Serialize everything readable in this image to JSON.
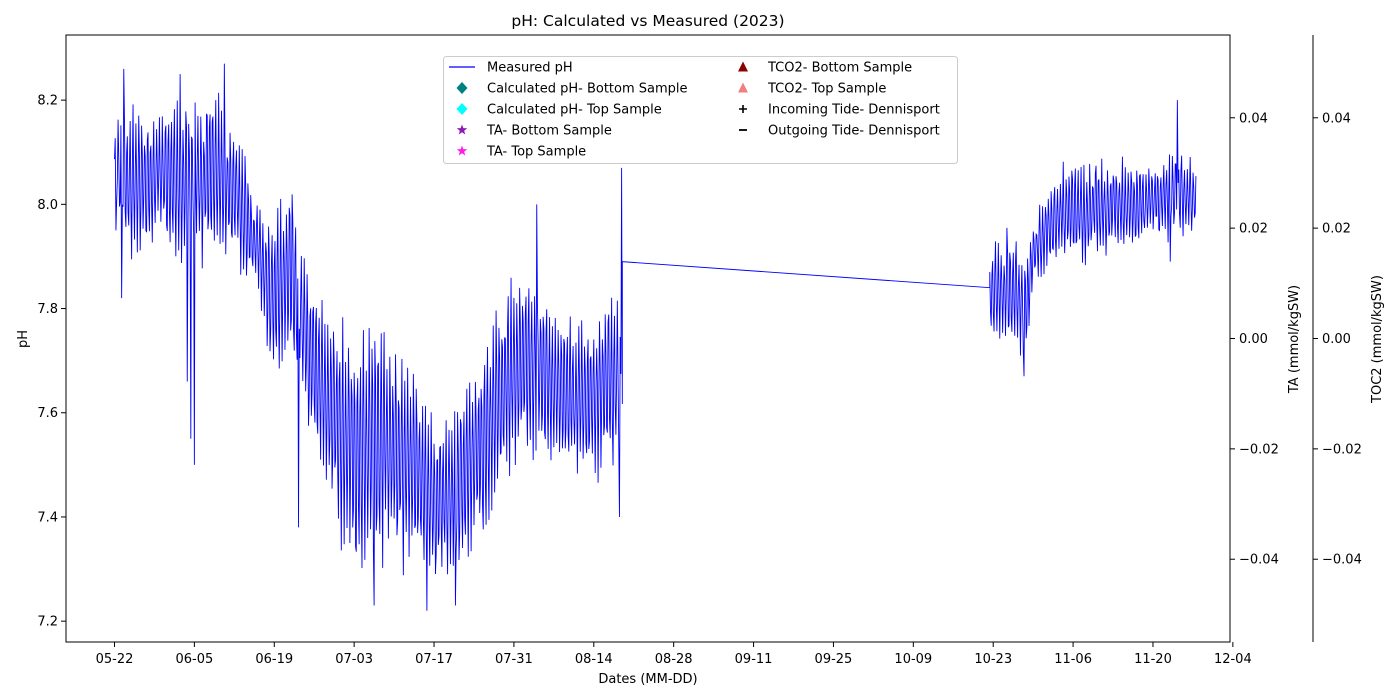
{
  "chart_data": {
    "type": "line",
    "title": "pH: Calculated vs Measured (2023)",
    "xlabel": "Dates (MM-DD)",
    "ylabel": "pH",
    "y2label": "TA (mmol/kgSW)",
    "y3label": "TOC2 (mmol/kgSW)",
    "xlim_days": [
      -8.5,
      195.5
    ],
    "ylim": [
      7.16,
      8.325
    ],
    "y2lim": [
      -0.055,
      0.055
    ],
    "x_ticks": [
      {
        "day": 0,
        "label": "05-22"
      },
      {
        "day": 14,
        "label": "06-05"
      },
      {
        "day": 28,
        "label": "06-19"
      },
      {
        "day": 42,
        "label": "07-03"
      },
      {
        "day": 56,
        "label": "07-17"
      },
      {
        "day": 70,
        "label": "07-31"
      },
      {
        "day": 84,
        "label": "08-14"
      },
      {
        "day": 98,
        "label": "08-28"
      },
      {
        "day": 112,
        "label": "09-11"
      },
      {
        "day": 126,
        "label": "09-25"
      },
      {
        "day": 140,
        "label": "10-09"
      },
      {
        "day": 154,
        "label": "10-23"
      },
      {
        "day": 168,
        "label": "11-06"
      },
      {
        "day": 182,
        "label": "11-20"
      },
      {
        "day": 196,
        "label": "12-04"
      }
    ],
    "y_ticks": [
      {
        "value": 7.2,
        "label": "7.2"
      },
      {
        "value": 7.4,
        "label": "7.4"
      },
      {
        "value": 7.6,
        "label": "7.6"
      },
      {
        "value": 7.8,
        "label": "7.8"
      },
      {
        "value": 8.0,
        "label": "8.0"
      },
      {
        "value": 8.2,
        "label": "8.2"
      }
    ],
    "y2_ticks": [
      {
        "value": 0.04,
        "label": "0.04"
      },
      {
        "value": 0.02,
        "label": "0.02"
      },
      {
        "value": 0.0,
        "label": "0.00"
      },
      {
        "value": -0.02,
        "label": "−0.02"
      },
      {
        "value": -0.04,
        "label": "−0.04"
      }
    ],
    "series": [
      {
        "name": "Measured pH",
        "color": "#0000ff",
        "style": "line",
        "envelope": [
          {
            "day": 0,
            "center": 8.07,
            "amp": 0.1
          },
          {
            "day": 3,
            "center": 8.05,
            "amp": 0.15
          },
          {
            "day": 8,
            "center": 8.05,
            "amp": 0.14
          },
          {
            "day": 12,
            "center": 8.04,
            "amp": 0.16
          },
          {
            "day": 17,
            "center": 8.06,
            "amp": 0.17
          },
          {
            "day": 21,
            "center": 8.03,
            "amp": 0.13
          },
          {
            "day": 25,
            "center": 7.92,
            "amp": 0.1
          },
          {
            "day": 28,
            "center": 7.82,
            "amp": 0.16
          },
          {
            "day": 31,
            "center": 7.88,
            "amp": 0.2
          },
          {
            "day": 34,
            "center": 7.72,
            "amp": 0.15
          },
          {
            "day": 38,
            "center": 7.6,
            "amp": 0.2
          },
          {
            "day": 42,
            "center": 7.52,
            "amp": 0.26
          },
          {
            "day": 47,
            "center": 7.55,
            "amp": 0.25
          },
          {
            "day": 52,
            "center": 7.5,
            "amp": 0.22
          },
          {
            "day": 56,
            "center": 7.42,
            "amp": 0.16
          },
          {
            "day": 61,
            "center": 7.47,
            "amp": 0.18
          },
          {
            "day": 65,
            "center": 7.55,
            "amp": 0.2
          },
          {
            "day": 69,
            "center": 7.67,
            "amp": 0.19
          },
          {
            "day": 72,
            "center": 7.7,
            "amp": 0.2
          },
          {
            "day": 77,
            "center": 7.65,
            "amp": 0.16
          },
          {
            "day": 82,
            "center": 7.62,
            "amp": 0.15
          },
          {
            "day": 88,
            "center": 7.66,
            "amp": 0.17
          }
        ],
        "spikes": [
          {
            "day": 0.2,
            "value": 7.95
          },
          {
            "day": 1.3,
            "value": 7.82
          },
          {
            "day": 1.6,
            "value": 8.26
          },
          {
            "day": 5.5,
            "value": 7.95
          },
          {
            "day": 11.5,
            "value": 8.25
          },
          {
            "day": 12.8,
            "value": 7.66
          },
          {
            "day": 13.4,
            "value": 7.55
          },
          {
            "day": 14.0,
            "value": 7.5
          },
          {
            "day": 19.2,
            "value": 8.27
          },
          {
            "day": 32.3,
            "value": 7.38
          },
          {
            "day": 45.5,
            "value": 7.23
          },
          {
            "day": 54.7,
            "value": 7.22
          },
          {
            "day": 59.8,
            "value": 7.23
          },
          {
            "day": 74.0,
            "value": 8.0
          },
          {
            "day": 88.5,
            "value": 7.4
          },
          {
            "day": 88.9,
            "value": 8.07
          }
        ],
        "gap_line": {
          "start_day": 89,
          "start_value": 7.89,
          "end_day": 153.4,
          "end_value": 7.84
        },
        "late_segment": [
          {
            "day": 153.4,
            "center": 7.83,
            "amp": 0.1
          },
          {
            "day": 157,
            "center": 7.84,
            "amp": 0.12
          },
          {
            "day": 160,
            "center": 7.8,
            "amp": 0.11
          },
          {
            "day": 161,
            "center": 7.91,
            "amp": 0.06
          },
          {
            "day": 166,
            "center": 7.98,
            "amp": 0.09
          },
          {
            "day": 172,
            "center": 7.99,
            "amp": 0.09
          },
          {
            "day": 180,
            "center": 8.0,
            "amp": 0.08
          },
          {
            "day": 186,
            "center": 8.02,
            "amp": 0.08
          },
          {
            "day": 189.6,
            "center": 8.02,
            "amp": 0.07
          }
        ],
        "late_spikes": [
          {
            "day": 159.4,
            "value": 7.67
          },
          {
            "day": 186.3,
            "value": 8.2
          },
          {
            "day": 185.0,
            "value": 7.89
          }
        ]
      }
    ],
    "legend": {
      "placement": "top-center",
      "entries": [
        {
          "name": "Measured pH",
          "marker": "line",
          "color": "#0000ff"
        },
        {
          "name": "Calculated pH- Bottom Sample",
          "marker": "diamond",
          "color": "#008080"
        },
        {
          "name": "Calculated pH- Top Sample",
          "marker": "diamond",
          "color": "#00ffff"
        },
        {
          "name": "TA- Bottom Sample",
          "marker": "star",
          "color": "#8b1cb5"
        },
        {
          "name": "TA- Top Sample",
          "marker": "star",
          "color": "#ff1ee8"
        },
        {
          "name": "TCO2- Bottom Sample",
          "marker": "triangle",
          "color": "#8b0000"
        },
        {
          "name": "TCO2- Top Sample",
          "marker": "triangle",
          "color": "#f08080"
        },
        {
          "name": "Incoming Tide- Dennisport",
          "marker": "plus",
          "color": "#000000"
        },
        {
          "name": "Outgoing Tide- Dennisport",
          "marker": "minus",
          "color": "#000000"
        }
      ]
    }
  }
}
